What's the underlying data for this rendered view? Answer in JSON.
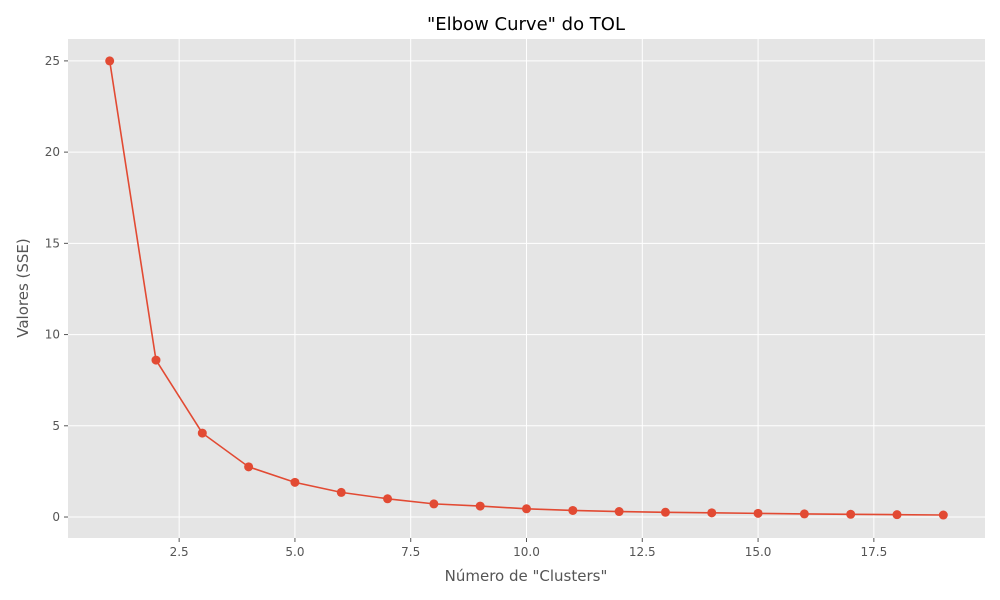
{
  "chart_data": {
    "type": "line",
    "title": "\"Elbow Curve\" do TOL",
    "xlabel": "Número de \"Clusters\"",
    "ylabel": "Valores (SSE)",
    "xlim": [
      0.1,
      19.9
    ],
    "ylim": [
      -1.15,
      26.2
    ],
    "xticks": [
      2.5,
      5.0,
      7.5,
      10.0,
      12.5,
      15.0,
      17.5
    ],
    "xtick_labels": [
      "2.5",
      "5.0",
      "7.5",
      "10.0",
      "12.5",
      "15.0",
      "17.5"
    ],
    "yticks": [
      0,
      5,
      10,
      15,
      20,
      25
    ],
    "ytick_labels": [
      "0",
      "5",
      "10",
      "15",
      "20",
      "25"
    ],
    "grid": true,
    "series": [
      {
        "color": "#e24a33",
        "marker": "circle",
        "x": [
          1,
          2,
          3,
          4,
          5,
          6,
          7,
          8,
          9,
          10,
          11,
          12,
          13,
          14,
          15,
          16,
          17,
          18,
          19
        ],
        "y": [
          25.0,
          8.6,
          4.6,
          2.75,
          1.9,
          1.35,
          1.0,
          0.72,
          0.6,
          0.45,
          0.36,
          0.3,
          0.26,
          0.23,
          0.2,
          0.17,
          0.15,
          0.13,
          0.11
        ]
      }
    ],
    "colors": {
      "background": "#e5e5e5",
      "grid": "#ffffff",
      "line": "#e24a33"
    }
  }
}
